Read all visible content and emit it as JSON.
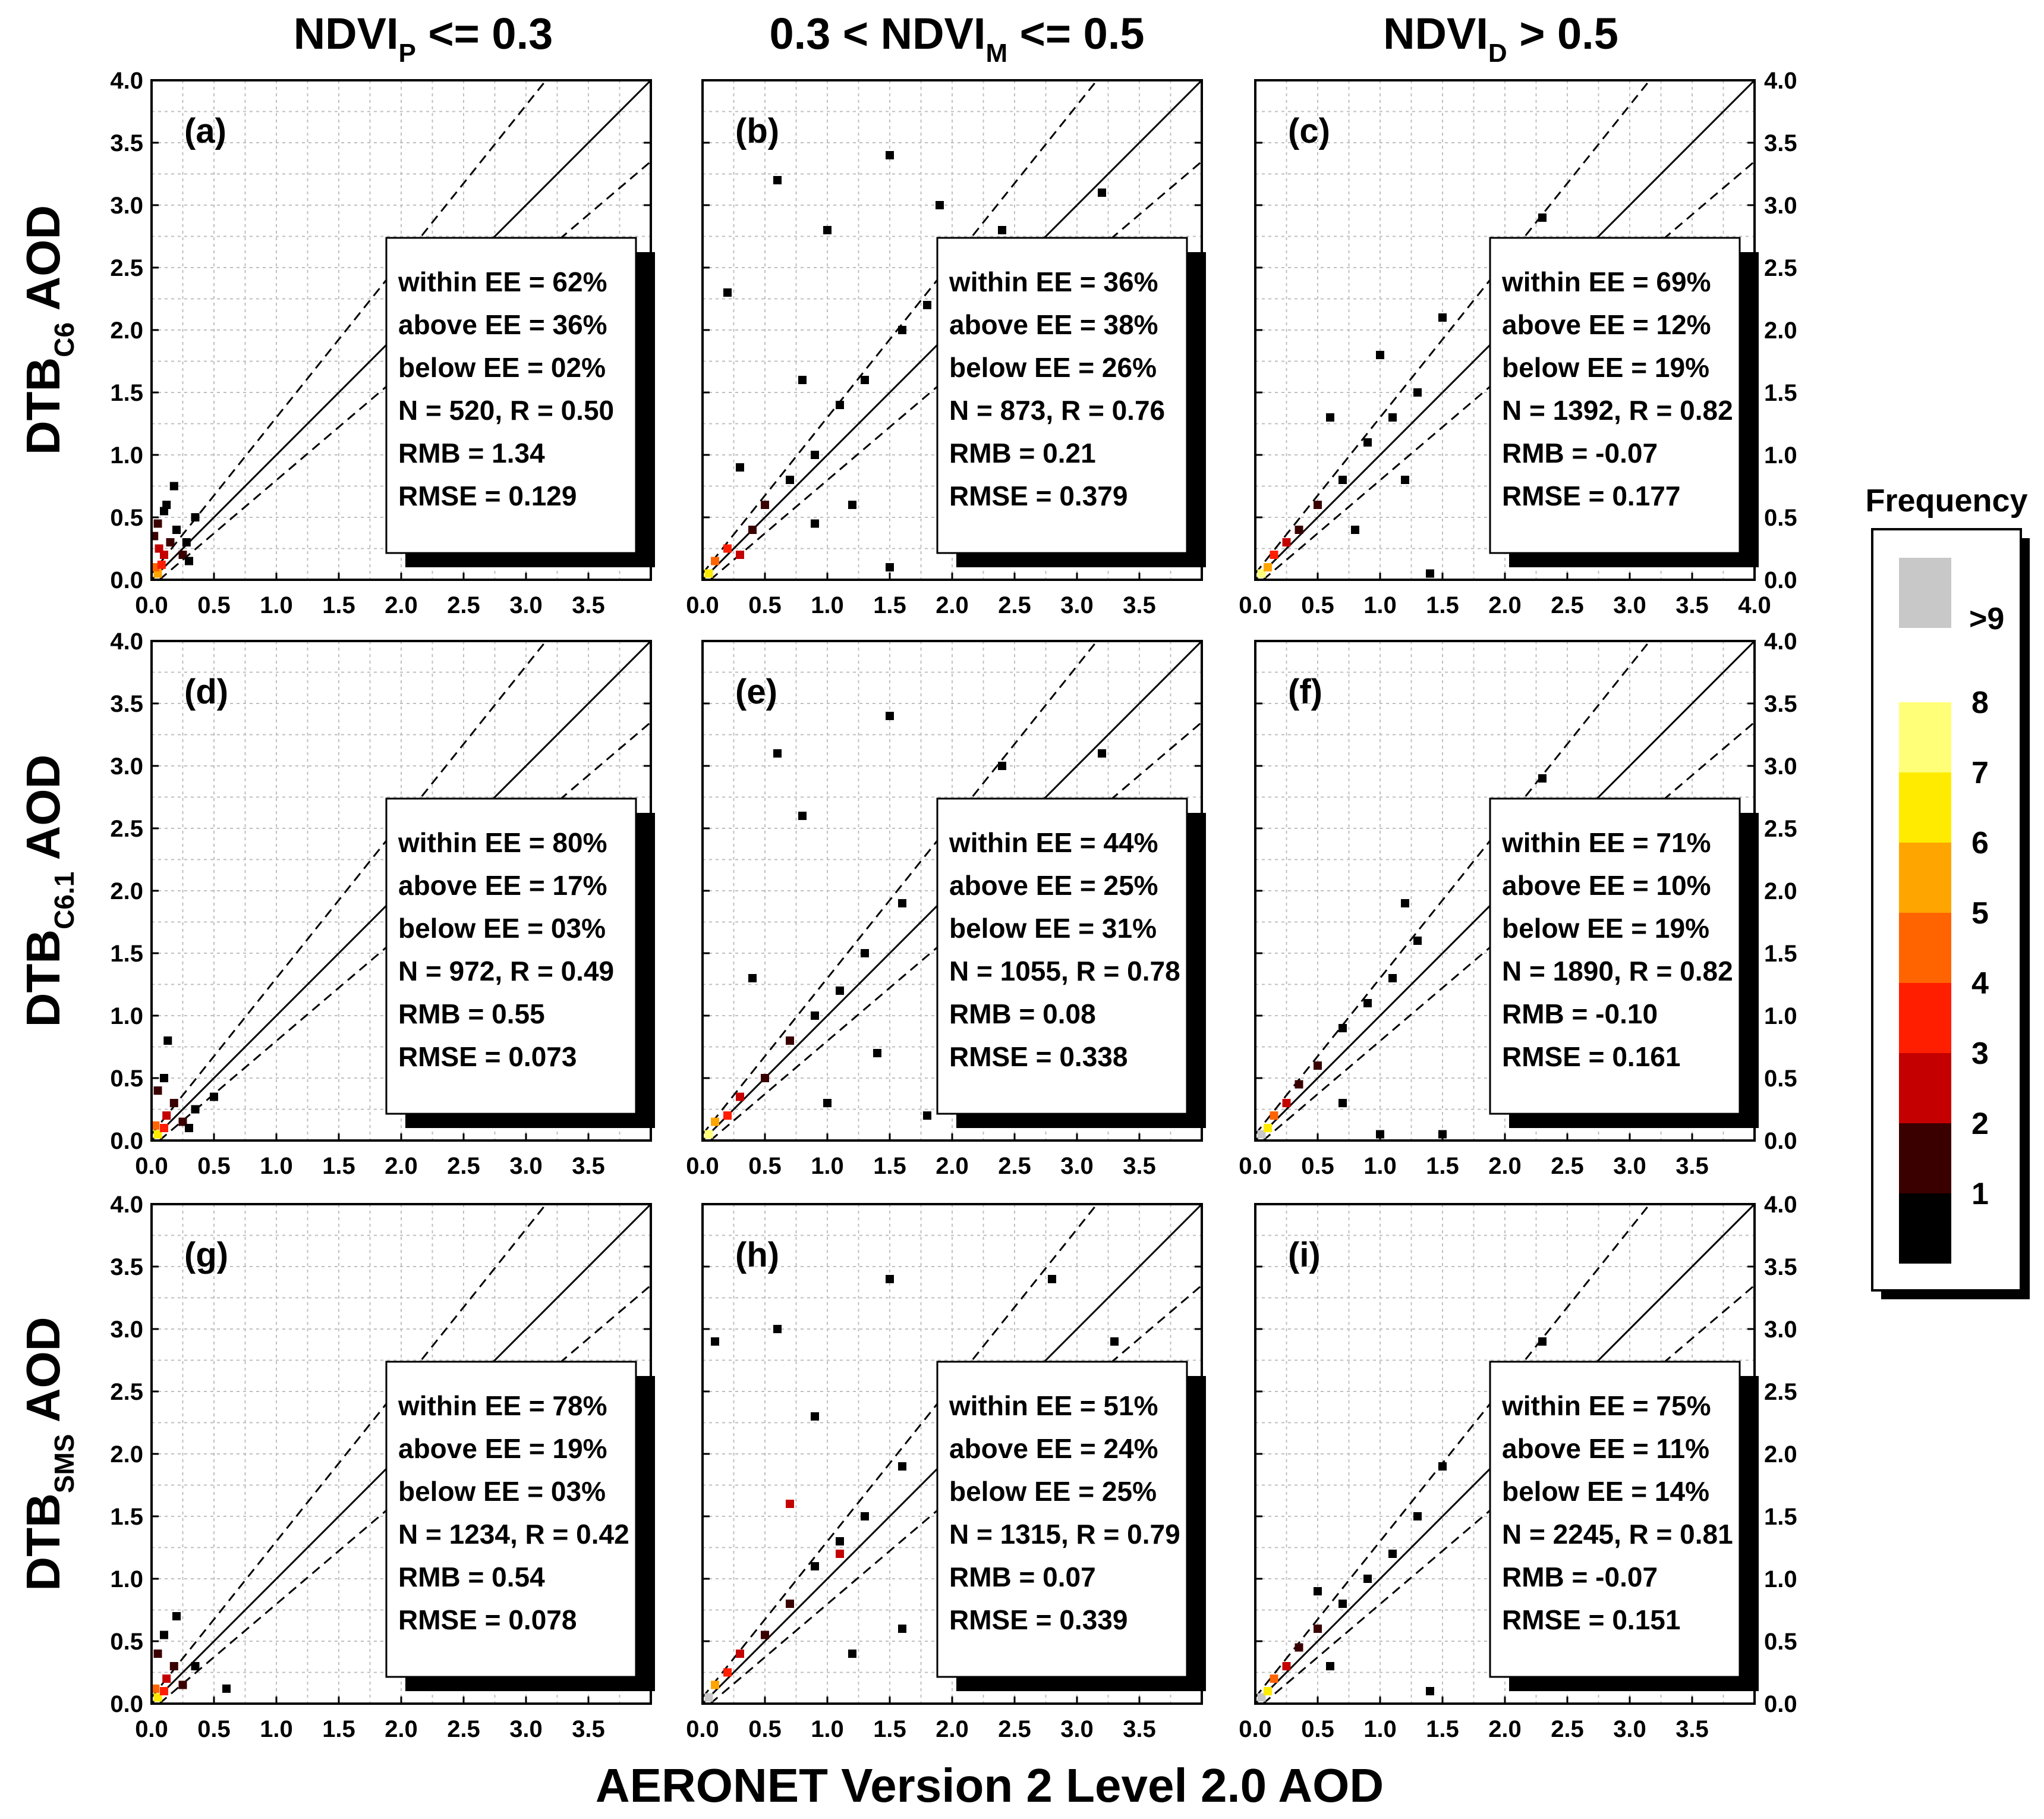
{
  "figure": {
    "x_axis_title": "AERONET Version 2 Level 2.0 AOD",
    "column_titles": [
      {
        "base": "NDVI",
        "sub": "P",
        "prefix": "",
        "suffix": " <= 0.3"
      },
      {
        "base": "NDVI",
        "sub": "M",
        "prefix": "0.3 < ",
        "suffix": " <= 0.5"
      },
      {
        "base": "NDVI",
        "sub": "D",
        "prefix": "",
        "suffix": " > 0.5"
      }
    ],
    "row_titles": [
      {
        "base": "DTB",
        "sub": "C6",
        "suffix": " AOD"
      },
      {
        "base": "DTB",
        "sub": "C6.1",
        "suffix": " AOD"
      },
      {
        "base": "DTB",
        "sub": "SMS",
        "suffix": " AOD"
      }
    ],
    "tick_labels": [
      "0.0",
      "0.5",
      "1.0",
      "1.5",
      "2.0",
      "2.5",
      "3.0",
      "3.5",
      "4.0"
    ],
    "colorbar": {
      "title": "Frequency",
      "levels": [
        {
          "label": "1",
          "color": "#000000"
        },
        {
          "label": "2",
          "color": "#3a0000"
        },
        {
          "label": "3",
          "color": "#c40000"
        },
        {
          "label": "4",
          "color": "#ff1e00"
        },
        {
          "label": "5",
          "color": "#ff6400"
        },
        {
          "label": "6",
          "color": "#ffa500"
        },
        {
          "label": "7",
          "color": "#ffeb00"
        },
        {
          "label": "8",
          "color": "#ffff78"
        },
        {
          "label": ">9",
          "color": "#c8c8c8"
        }
      ]
    }
  },
  "chart_data": [
    {
      "type": "scatter",
      "panel": "(a)",
      "xlim": [
        0,
        4
      ],
      "ylim": [
        0,
        4
      ],
      "grid": true,
      "one_to_one_line": true,
      "ee_envelope": true,
      "stats": [
        "within EE = 62%",
        "above EE = 36%",
        "below EE = 02%",
        "N = 520, R = 0.50",
        "RMB = 1.34",
        "RMSE = 0.129"
      ],
      "points": [
        [
          0.05,
          0.05,
          6
        ],
        [
          0.03,
          0.1,
          5
        ],
        [
          0.08,
          0.12,
          4
        ],
        [
          0.1,
          0.2,
          3
        ],
        [
          0.15,
          0.3,
          2
        ],
        [
          0.05,
          0.45,
          2
        ],
        [
          0.1,
          0.55,
          1
        ],
        [
          0.2,
          0.4,
          1
        ],
        [
          0.25,
          0.2,
          2
        ],
        [
          0.3,
          0.15,
          1
        ],
        [
          0.12,
          0.6,
          1
        ],
        [
          0.18,
          0.75,
          1
        ],
        [
          0.35,
          0.5,
          1
        ],
        [
          0.28,
          0.3,
          1
        ],
        [
          0.06,
          0.25,
          3
        ],
        [
          0.02,
          0.35,
          2
        ]
      ]
    },
    {
      "type": "scatter",
      "panel": "(b)",
      "xlim": [
        0,
        4
      ],
      "ylim": [
        0,
        4
      ],
      "grid": true,
      "one_to_one_line": true,
      "ee_envelope": true,
      "stats": [
        "within EE = 36%",
        "above EE = 38%",
        "below EE = 26%",
        "N = 873, R = 0.76",
        "RMB = 0.21",
        "RMSE = 0.379"
      ],
      "points": [
        [
          0.05,
          0.05,
          7
        ],
        [
          0.1,
          0.15,
          5
        ],
        [
          0.2,
          0.25,
          4
        ],
        [
          0.3,
          0.2,
          3
        ],
        [
          0.4,
          0.4,
          2
        ],
        [
          0.5,
          0.6,
          2
        ],
        [
          0.7,
          0.8,
          1
        ],
        [
          0.9,
          1.0,
          1
        ],
        [
          1.1,
          1.4,
          1
        ],
        [
          1.3,
          1.6,
          1
        ],
        [
          1.6,
          2.0,
          1
        ],
        [
          1.8,
          2.2,
          1
        ],
        [
          0.6,
          3.2,
          1
        ],
        [
          1.5,
          3.4,
          1
        ],
        [
          2.4,
          2.8,
          1
        ],
        [
          0.9,
          0.45,
          1
        ],
        [
          1.2,
          0.6,
          1
        ],
        [
          1.5,
          0.1,
          1
        ],
        [
          0.3,
          0.9,
          1
        ],
        [
          0.8,
          1.6,
          1
        ],
        [
          1.0,
          2.8,
          1
        ],
        [
          1.9,
          3.0,
          1
        ],
        [
          3.2,
          3.1,
          1
        ],
        [
          0.2,
          2.3,
          1
        ]
      ]
    },
    {
      "type": "scatter",
      "panel": "(c)",
      "xlim": [
        0,
        4
      ],
      "ylim": [
        0,
        4
      ],
      "grid": true,
      "one_to_one_line": true,
      "ee_envelope": true,
      "stats": [
        "within EE = 69%",
        "above EE = 12%",
        "below EE = 19%",
        "N = 1392, R = 0.82",
        "RMB = -0.07",
        "RMSE = 0.177"
      ],
      "points": [
        [
          0.05,
          0.05,
          8
        ],
        [
          0.1,
          0.1,
          6
        ],
        [
          0.15,
          0.2,
          4
        ],
        [
          0.25,
          0.3,
          3
        ],
        [
          0.35,
          0.4,
          2
        ],
        [
          0.5,
          0.6,
          2
        ],
        [
          0.7,
          0.8,
          1
        ],
        [
          0.9,
          1.1,
          1
        ],
        [
          1.1,
          1.3,
          1
        ],
        [
          1.3,
          1.5,
          1
        ],
        [
          1.5,
          2.1,
          1
        ],
        [
          1.2,
          0.8,
          1
        ],
        [
          0.8,
          0.4,
          1
        ],
        [
          2.3,
          2.9,
          1
        ],
        [
          1.4,
          0.05,
          1
        ],
        [
          0.6,
          1.3,
          1
        ],
        [
          1.0,
          1.8,
          1
        ]
      ]
    },
    {
      "type": "scatter",
      "panel": "(d)",
      "xlim": [
        0,
        4
      ],
      "ylim": [
        0,
        4
      ],
      "grid": true,
      "one_to_one_line": true,
      "ee_envelope": true,
      "stats": [
        "within EE = 80%",
        "above EE = 17%",
        "below EE = 03%",
        "N = 972, R = 0.49",
        "RMB = 0.55",
        "RMSE = 0.073"
      ],
      "points": [
        [
          0.05,
          0.05,
          7
        ],
        [
          0.03,
          0.12,
          5
        ],
        [
          0.1,
          0.1,
          4
        ],
        [
          0.12,
          0.2,
          3
        ],
        [
          0.18,
          0.3,
          2
        ],
        [
          0.05,
          0.4,
          2
        ],
        [
          0.1,
          0.5,
          1
        ],
        [
          0.25,
          0.15,
          2
        ],
        [
          0.3,
          0.1,
          1
        ],
        [
          0.13,
          0.8,
          1
        ],
        [
          0.5,
          0.35,
          1
        ],
        [
          0.35,
          0.25,
          1
        ]
      ]
    },
    {
      "type": "scatter",
      "panel": "(e)",
      "xlim": [
        0,
        4
      ],
      "ylim": [
        0,
        4
      ],
      "grid": true,
      "one_to_one_line": true,
      "ee_envelope": true,
      "stats": [
        "within EE = 44%",
        "above EE = 25%",
        "below EE = 31%",
        "N = 1055, R = 0.78",
        "RMB = 0.08",
        "RMSE = 0.338"
      ],
      "points": [
        [
          0.05,
          0.05,
          8
        ],
        [
          0.1,
          0.15,
          6
        ],
        [
          0.2,
          0.2,
          4
        ],
        [
          0.3,
          0.35,
          3
        ],
        [
          0.5,
          0.5,
          2
        ],
        [
          0.7,
          0.8,
          2
        ],
        [
          0.9,
          1.0,
          1
        ],
        [
          1.1,
          1.2,
          1
        ],
        [
          1.3,
          1.5,
          1
        ],
        [
          1.6,
          1.9,
          1
        ],
        [
          0.6,
          3.1,
          1
        ],
        [
          1.5,
          3.4,
          1
        ],
        [
          2.4,
          3.0,
          1
        ],
        [
          3.2,
          3.1,
          1
        ],
        [
          1.0,
          0.3,
          1
        ],
        [
          1.4,
          0.7,
          1
        ],
        [
          1.8,
          0.2,
          1
        ],
        [
          0.8,
          2.6,
          1
        ],
        [
          0.4,
          1.3,
          1
        ],
        [
          2.0,
          2.4,
          1
        ]
      ]
    },
    {
      "type": "scatter",
      "panel": "(f)",
      "xlim": [
        0,
        4
      ],
      "ylim": [
        0,
        4
      ],
      "grid": true,
      "one_to_one_line": true,
      "ee_envelope": true,
      "stats": [
        "within EE = 71%",
        "above EE = 10%",
        "below EE = 19%",
        "N = 1890, R = 0.82",
        "RMB = -0.10",
        "RMSE = 0.161"
      ],
      "points": [
        [
          0.05,
          0.05,
          9
        ],
        [
          0.1,
          0.1,
          7
        ],
        [
          0.15,
          0.2,
          5
        ],
        [
          0.25,
          0.3,
          3
        ],
        [
          0.35,
          0.45,
          2
        ],
        [
          0.5,
          0.6,
          2
        ],
        [
          0.7,
          0.9,
          1
        ],
        [
          0.9,
          1.1,
          1
        ],
        [
          1.1,
          1.3,
          1
        ],
        [
          1.3,
          1.6,
          1
        ],
        [
          1.2,
          1.9,
          1
        ],
        [
          0.7,
          0.3,
          1
        ],
        [
          2.3,
          2.9,
          1
        ],
        [
          1.5,
          0.05,
          1
        ],
        [
          1.0,
          0.05,
          1
        ]
      ]
    },
    {
      "type": "scatter",
      "panel": "(g)",
      "xlim": [
        0,
        4
      ],
      "ylim": [
        0,
        4
      ],
      "grid": true,
      "one_to_one_line": true,
      "ee_envelope": true,
      "stats": [
        "within EE = 78%",
        "above EE = 19%",
        "below EE = 03%",
        "N = 1234, R = 0.42",
        "RMB = 0.54",
        "RMSE = 0.078"
      ],
      "points": [
        [
          0.05,
          0.05,
          7
        ],
        [
          0.03,
          0.12,
          5
        ],
        [
          0.1,
          0.1,
          4
        ],
        [
          0.12,
          0.2,
          3
        ],
        [
          0.18,
          0.3,
          2
        ],
        [
          0.05,
          0.4,
          2
        ],
        [
          0.1,
          0.55,
          1
        ],
        [
          0.2,
          0.7,
          1
        ],
        [
          0.25,
          0.15,
          2
        ],
        [
          0.6,
          0.12,
          1
        ],
        [
          0.35,
          0.3,
          1
        ]
      ]
    },
    {
      "type": "scatter",
      "panel": "(h)",
      "xlim": [
        0,
        4
      ],
      "ylim": [
        0,
        4
      ],
      "grid": true,
      "one_to_one_line": true,
      "ee_envelope": true,
      "stats": [
        "within EE = 51%",
        "above EE = 24%",
        "below EE = 25%",
        "N = 1315, R = 0.79",
        "RMB = 0.07",
        "RMSE = 0.339"
      ],
      "points": [
        [
          0.05,
          0.05,
          9
        ],
        [
          0.1,
          0.15,
          6
        ],
        [
          0.2,
          0.25,
          4
        ],
        [
          0.3,
          0.4,
          3
        ],
        [
          0.5,
          0.55,
          2
        ],
        [
          0.7,
          0.8,
          2
        ],
        [
          0.9,
          1.1,
          1
        ],
        [
          1.1,
          1.3,
          1
        ],
        [
          1.3,
          1.5,
          1
        ],
        [
          1.6,
          1.9,
          1
        ],
        [
          0.7,
          1.6,
          3
        ],
        [
          1.1,
          1.2,
          3
        ],
        [
          0.6,
          3.0,
          1
        ],
        [
          1.5,
          3.4,
          1
        ],
        [
          2.8,
          3.4,
          1
        ],
        [
          3.3,
          2.9,
          1
        ],
        [
          1.2,
          0.4,
          1
        ],
        [
          1.6,
          0.6,
          1
        ],
        [
          0.1,
          2.9,
          1
        ],
        [
          0.9,
          2.3,
          1
        ],
        [
          2.0,
          2.5,
          1
        ]
      ]
    },
    {
      "type": "scatter",
      "panel": "(i)",
      "xlim": [
        0,
        4
      ],
      "ylim": [
        0,
        4
      ],
      "grid": true,
      "one_to_one_line": true,
      "ee_envelope": true,
      "stats": [
        "within EE = 75%",
        "above EE = 11%",
        "below EE = 14%",
        "N = 2245, R = 0.81",
        "RMB = -0.07",
        "RMSE = 0.151"
      ],
      "points": [
        [
          0.05,
          0.05,
          9
        ],
        [
          0.1,
          0.1,
          7
        ],
        [
          0.15,
          0.2,
          5
        ],
        [
          0.25,
          0.3,
          3
        ],
        [
          0.35,
          0.45,
          2
        ],
        [
          0.5,
          0.6,
          2
        ],
        [
          0.7,
          0.8,
          1
        ],
        [
          0.9,
          1.0,
          1
        ],
        [
          1.1,
          1.2,
          1
        ],
        [
          1.3,
          1.5,
          1
        ],
        [
          1.5,
          1.9,
          1
        ],
        [
          0.6,
          0.3,
          1
        ],
        [
          2.3,
          2.9,
          1
        ],
        [
          0.5,
          0.9,
          1
        ],
        [
          1.4,
          0.1,
          1
        ]
      ]
    }
  ]
}
